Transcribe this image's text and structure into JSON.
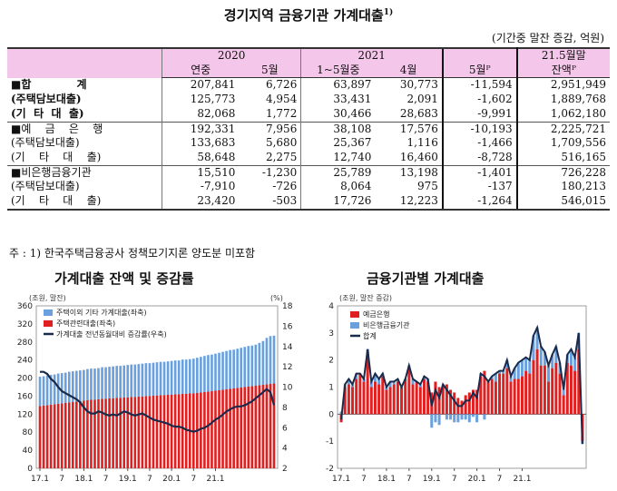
{
  "title": "경기지역 금융기관 가계대출",
  "title_sup": "1)",
  "unit": "(기간중 말잔 증감, 억원)",
  "table": {
    "header": {
      "y2020": "2020",
      "y2021": "2021",
      "end": "21.5월말",
      "annual": "연중",
      "may2020": "5월",
      "jan_may": "1~5월중",
      "apr": "4월",
      "may": "5월ᴾ",
      "balance": "잔액ᴾ"
    },
    "rows": [
      {
        "label": "■합            계",
        "values": [
          "207,841",
          "6,726",
          "63,897",
          "30,773",
          "-11,594",
          "2,951,949"
        ]
      },
      {
        "label": "(주택담보대출)",
        "values": [
          "125,773",
          "4,954",
          "33,431",
          "2,091",
          "-1,602",
          "1,889,768"
        ]
      },
      {
        "label": "(기  타  대  출)",
        "values": [
          "82,068",
          "1,772",
          "30,466",
          "28,683",
          "-9,991",
          "1,062,180"
        ]
      },
      {
        "label": "■예    금    은    행",
        "values": [
          "192,331",
          "7,956",
          "38,108",
          "17,576",
          "-10,193",
          "2,225,721"
        ]
      },
      {
        "label": "(주택담보대출)",
        "values": [
          "133,683",
          "5,680",
          "25,367",
          "1,116",
          "-1,466",
          "1,709,556"
        ]
      },
      {
        "label": "(기    타    대    출)",
        "values": [
          "58,648",
          "2,275",
          "12,740",
          "16,460",
          "-8,728",
          "516,165"
        ]
      },
      {
        "label": "■비은행금융기관",
        "values": [
          "15,510",
          "-1,230",
          "25,789",
          "13,198",
          "-1,401",
          "726,228"
        ]
      },
      {
        "label": "(주택담보대출)",
        "values": [
          "-7,910",
          "-726",
          "8,064",
          "975",
          "-137",
          "180,213"
        ]
      },
      {
        "label": "(기    타    대    출)",
        "values": [
          "23,420",
          "-503",
          "17,726",
          "12,223",
          "-1,264",
          "546,015"
        ]
      }
    ]
  },
  "note": "주 : 1) 한국주택금융공사 정책모기지론 양도분 미포함",
  "chart_data": [
    {
      "type": "bar",
      "title": "가계대출 잔액 및 증감률",
      "ylabel_left": "(조원, 말잔)",
      "ylabel_right": "(%)",
      "ylim_left": [
        0,
        360
      ],
      "ylim_right": [
        2,
        18
      ],
      "yticks_left": [
        "0",
        "40",
        "80",
        "120",
        "160",
        "200",
        "240",
        "280",
        "320",
        "360"
      ],
      "yticks_right": [
        "2",
        "4",
        "6",
        "8",
        "10",
        "12",
        "14",
        "16",
        "18"
      ],
      "xticks": [
        "17.1",
        "7",
        "18.1",
        "7",
        "19.1",
        "7",
        "20.1",
        "7",
        "21.1"
      ],
      "legend": [
        "주택이외 기타 가계대출(좌축)",
        "주택관련대출(좌축)",
        "가계대출 전년동월대비 증감률(우축)"
      ],
      "colors": {
        "other": "#6aa0de",
        "housing": "#e02020",
        "growth": "#1a2a4a"
      },
      "series": [
        {
          "name": "주택이외 기타 가계대출(좌축)",
          "values": [
            65,
            65,
            66,
            66,
            66,
            67,
            67,
            67,
            68,
            68,
            68,
            68,
            68,
            69,
            69,
            69,
            69,
            70,
            70,
            70,
            71,
            71,
            71,
            71,
            72,
            72,
            72,
            72,
            73,
            73,
            73,
            73,
            74,
            74,
            74,
            74,
            75,
            75,
            75,
            76,
            76,
            76,
            77,
            78,
            79,
            80,
            81,
            81,
            82,
            83,
            84,
            85,
            86,
            86,
            87,
            88,
            89,
            90,
            90,
            91,
            94,
            97,
            103,
            106,
            106
          ]
        },
        {
          "name": "주택관련대출(좌축)",
          "values": [
            138,
            139,
            140,
            141,
            142,
            143,
            144,
            145,
            146,
            147,
            148,
            149,
            150,
            151,
            152,
            152,
            153,
            154,
            154,
            155,
            155,
            156,
            156,
            157,
            157,
            158,
            158,
            159,
            159,
            160,
            160,
            161,
            161,
            162,
            162,
            163,
            163,
            164,
            164,
            165,
            165,
            166,
            166,
            167,
            168,
            169,
            170,
            171,
            172,
            173,
            174,
            175,
            176,
            177,
            178,
            179,
            180,
            181,
            182,
            183,
            184,
            185,
            186,
            187,
            188
          ]
        },
        {
          "name": "가계대출 전년동월대비 증감률(우축)",
          "values": [
            11.5,
            11.5,
            11.3,
            10.8,
            10.5,
            10.0,
            9.6,
            9.4,
            9.2,
            9.0,
            8.8,
            8.5,
            8.0,
            7.6,
            7.4,
            7.4,
            7.6,
            7.5,
            7.3,
            7.2,
            7.3,
            7.2,
            7.4,
            7.6,
            7.5,
            7.3,
            7.2,
            7.3,
            7.4,
            7.2,
            7.0,
            6.8,
            6.7,
            6.6,
            6.5,
            6.4,
            6.2,
            6.1,
            6.1,
            6.0,
            5.8,
            5.7,
            5.6,
            5.7,
            5.9,
            6.0,
            6.2,
            6.5,
            6.8,
            7.0,
            7.3,
            7.6,
            7.8,
            8.0,
            8.1,
            8.1,
            8.2,
            8.4,
            8.6,
            8.9,
            9.2,
            9.5,
            9.8,
            9.5,
            8.2
          ]
        }
      ]
    },
    {
      "type": "bar",
      "title": "금융기관별 가계대출",
      "ylabel": "(조원, 말잔 증감)",
      "ylim": [
        -2,
        4
      ],
      "yticks": [
        "-2",
        "-1",
        "0",
        "1",
        "2",
        "3",
        "4"
      ],
      "xticks": [
        "17.1",
        "7",
        "18.1",
        "7",
        "19.1",
        "7",
        "20.1",
        "7",
        "21.1"
      ],
      "legend": [
        "예금은행",
        "비은행금융기관",
        "합계"
      ],
      "colors": {
        "bank": "#e02020",
        "nonbank": "#6aa0de",
        "total": "#1a2a4a"
      },
      "series": [
        {
          "name": "예금은행",
          "values": [
            -0.3,
            1.0,
            1.1,
            1.0,
            1.3,
            1.5,
            1.2,
            2.3,
            1.0,
            1.2,
            1.1,
            1.4,
            0.9,
            1.0,
            1.1,
            1.2,
            1.0,
            1.3,
            1.7,
            1.1,
            1.2,
            1.0,
            1.3,
            1.2,
            0.8,
            1.2,
            1.0,
            1.0,
            1.1,
            0.9,
            0.8,
            0.6,
            0.5,
            0.7,
            0.8,
            0.9,
            0.9,
            1.4,
            1.6,
            1.2,
            1.3,
            1.2,
            1.5,
            1.5,
            1.7,
            1.2,
            1.3,
            1.3,
            1.4,
            1.6,
            1.5,
            2.0,
            2.4,
            1.8,
            1.8,
            1.2,
            1.7,
            1.9,
            1.5,
            0.7,
            1.9,
            1.8,
            1.6,
            2.4,
            -1.0
          ]
        },
        {
          "name": "비은행금융기관",
          "values": [
            0.1,
            0.1,
            0.2,
            0.1,
            0.2,
            0.0,
            0.1,
            0.1,
            0.2,
            0.3,
            0.2,
            0.1,
            0.1,
            0.2,
            0.1,
            0.1,
            0.0,
            0.0,
            0.1,
            0.2,
            0.0,
            0.1,
            0.1,
            0.1,
            -0.5,
            -0.3,
            -0.4,
            0.1,
            -0.2,
            -0.2,
            -0.3,
            -0.3,
            -0.2,
            -0.2,
            -0.3,
            -0.1,
            -0.3,
            0.1,
            -0.2,
            0.0,
            0.1,
            0.3,
            0.1,
            0.1,
            0.3,
            0.2,
            0.4,
            0.6,
            0.6,
            0.5,
            0.5,
            0.9,
            0.8,
            0.7,
            0.5,
            0.6,
            0.5,
            0.6,
            0.4,
            0.2,
            0.3,
            0.6,
            0.5,
            0.6,
            -0.1
          ]
        },
        {
          "name": "합계",
          "values": [
            -0.2,
            1.1,
            1.3,
            1.1,
            1.5,
            1.5,
            1.3,
            2.4,
            1.2,
            1.5,
            1.3,
            1.5,
            1.0,
            1.2,
            1.2,
            1.3,
            1.0,
            1.3,
            1.8,
            1.3,
            1.2,
            1.1,
            1.4,
            1.3,
            0.3,
            0.9,
            0.6,
            1.1,
            0.9,
            0.7,
            0.5,
            0.3,
            0.3,
            0.5,
            0.5,
            0.8,
            0.6,
            1.5,
            1.4,
            1.2,
            1.4,
            1.5,
            1.6,
            1.6,
            2.0,
            1.4,
            1.7,
            1.9,
            2.0,
            2.1,
            2.0,
            2.9,
            3.2,
            2.5,
            2.3,
            1.8,
            2.2,
            2.5,
            1.9,
            0.9,
            2.2,
            2.4,
            2.1,
            3.0,
            -1.1
          ]
        }
      ]
    }
  ]
}
